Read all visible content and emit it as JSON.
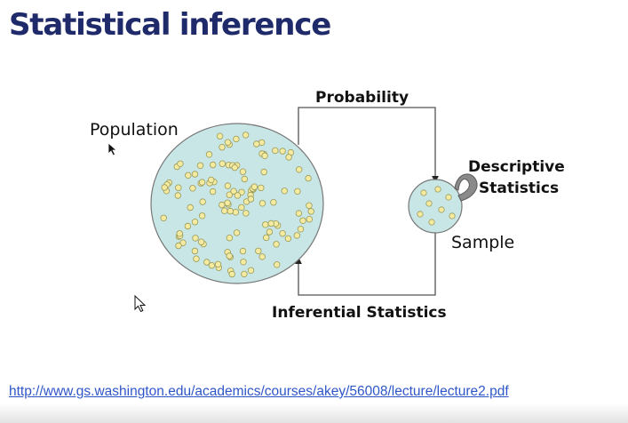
{
  "slide": {
    "title": "Statistical inference",
    "source_link": "http://www.gs.washington.edu/academics/courses/akey/56008/lecture/lecture2.pdf"
  },
  "diagram": {
    "population_label": "Population",
    "sample_label": "Sample",
    "probability_label": "Probability",
    "inferential_label": "Inferential Statistics",
    "descriptive_label_line1": "Descriptive",
    "descriptive_label_line2": "Statistics"
  },
  "colors": {
    "title": "#1f2a6b",
    "circle_fill": "#c9e6e6",
    "dot_fill": "#f4eaa0",
    "link": "#2f56c9"
  },
  "icons": [
    "cursor-arrow-icon",
    "cursor-outline-arrow-icon",
    "loop-arrow-icon"
  ]
}
